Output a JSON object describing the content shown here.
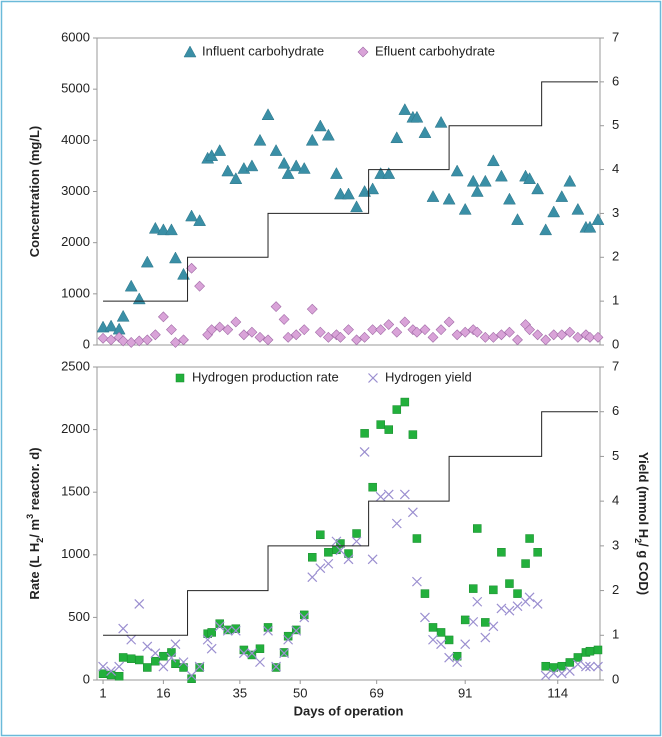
{
  "chart_data": [
    {
      "type": "scatter",
      "ylabel": [
        {
          "text": "Concentration  (mg/L)"
        }
      ],
      "xlim": [
        -0.5,
        124.5
      ],
      "ylim": [
        0,
        6000
      ],
      "yticks": [
        0,
        1000,
        2000,
        3000,
        4000,
        5000,
        6000
      ],
      "y2lim": [
        0,
        7
      ],
      "y2ticks": [
        0,
        1,
        2,
        3,
        4,
        5,
        6,
        7
      ],
      "legend": "top",
      "x": [
        1,
        3,
        5,
        6,
        8,
        10,
        12,
        14,
        16,
        18,
        19,
        21,
        23,
        25,
        27,
        28,
        30,
        32,
        34,
        36,
        38,
        40,
        42,
        44,
        46,
        47,
        49,
        51,
        53,
        55,
        57,
        59,
        60,
        62,
        64,
        66,
        68,
        70,
        72,
        74,
        76,
        78,
        79,
        81,
        83,
        85,
        87,
        89,
        91,
        93,
        94,
        96,
        98,
        100,
        102,
        104,
        106,
        107,
        109,
        111,
        113,
        115,
        117,
        119,
        121,
        122,
        124
      ],
      "series": [
        {
          "name": "Influent carbohydrate",
          "marker": "triangle",
          "color": "#3a8fa6",
          "values": [
            350,
            370,
            310,
            560,
            1150,
            900,
            1620,
            2280,
            2250,
            2250,
            1700,
            1380,
            2520,
            2430,
            3650,
            3700,
            3800,
            3400,
            3250,
            3450,
            3500,
            4000,
            4500,
            3800,
            3550,
            3350,
            3500,
            3450,
            4000,
            4280,
            4100,
            3350,
            2950,
            2950,
            2700,
            3000,
            3050,
            3350,
            3350,
            4050,
            4600,
            4450,
            4450,
            4150,
            2900,
            4350,
            2850,
            3400,
            2650,
            3200,
            3000,
            3200,
            3600,
            3300,
            2850,
            2450,
            3300,
            3250,
            3050,
            2250,
            2600,
            2900,
            3200,
            2650,
            2300,
            2300,
            2450
          ]
        },
        {
          "name": "Efluent carbohydrate",
          "marker": "diamond",
          "color": "#d9a3d8",
          "values": [
            130,
            100,
            150,
            80,
            50,
            80,
            100,
            200,
            550,
            300,
            50,
            100,
            1500,
            1150,
            200,
            300,
            350,
            300,
            450,
            200,
            250,
            150,
            100,
            750,
            500,
            150,
            200,
            300,
            700,
            250,
            150,
            200,
            150,
            300,
            100,
            150,
            300,
            300,
            400,
            250,
            450,
            300,
            250,
            300,
            150,
            300,
            450,
            200,
            250,
            300,
            250,
            150,
            150,
            200,
            250,
            100,
            400,
            300,
            200,
            100,
            200,
            200,
            250,
            150,
            200,
            150,
            150
          ]
        },
        {
          "marker": "none",
          "color": "#222222",
          "axis": "y2",
          "x": [
            1,
            22,
            22,
            42,
            42,
            67,
            67,
            87,
            87,
            110,
            110,
            124
          ],
          "values": [
            1,
            1,
            2,
            2,
            3,
            3,
            4,
            4,
            5,
            5,
            6,
            6
          ]
        }
      ]
    },
    {
      "type": "scatter",
      "ylabel": [
        {
          "text": "Rate (L H"
        },
        {
          "text": "2",
          "script": "sub"
        },
        {
          "text": "/ m"
        },
        {
          "text": "3",
          "script": "super"
        },
        {
          "text": " reactor. d)"
        }
      ],
      "y2label": [
        {
          "text": "Yield (mmol H"
        },
        {
          "text": "2",
          "script": "sub"
        },
        {
          "text": "/ g COD)"
        }
      ],
      "xlabel": "Days  of operation",
      "xlim": [
        -0.5,
        124.5
      ],
      "xticks": [
        1,
        16,
        35,
        50,
        69,
        91,
        114
      ],
      "ylim": [
        0,
        2500
      ],
      "yticks": [
        0,
        500,
        1000,
        1500,
        2000,
        2500
      ],
      "y2lim": [
        0,
        7
      ],
      "y2ticks": [
        0,
        1,
        2,
        3,
        4,
        5,
        6,
        7
      ],
      "legend": "top",
      "x": [
        1,
        3,
        5,
        6,
        8,
        10,
        12,
        14,
        16,
        18,
        19,
        21,
        23,
        25,
        27,
        28,
        30,
        32,
        34,
        36,
        38,
        40,
        42,
        44,
        46,
        47,
        49,
        51,
        53,
        55,
        57,
        59,
        60,
        62,
        64,
        66,
        68,
        70,
        72,
        74,
        76,
        78,
        79,
        81,
        83,
        85,
        87,
        89,
        91,
        93,
        94,
        96,
        98,
        100,
        102,
        104,
        106,
        107,
        109,
        111,
        113,
        115,
        117,
        119,
        121,
        122,
        124
      ],
      "series": [
        {
          "name": "Hydrogen production rate",
          "marker": "square",
          "color": "#22b03c",
          "values": [
            50,
            40,
            30,
            180,
            170,
            160,
            100,
            150,
            190,
            220,
            130,
            100,
            10,
            100,
            370,
            380,
            450,
            400,
            410,
            240,
            200,
            250,
            420,
            100,
            220,
            350,
            400,
            520,
            980,
            1160,
            1020,
            1040,
            1090,
            1010,
            1170,
            1970,
            1540,
            2040,
            2000,
            2160,
            2220,
            1960,
            1130,
            690,
            420,
            380,
            320,
            190,
            480,
            730,
            1210,
            460,
            720,
            1020,
            770,
            690,
            930,
            1130,
            1020,
            110,
            100,
            110,
            140,
            180,
            220,
            230,
            240
          ]
        },
        {
          "name": "Hydrogen yield",
          "marker": "cross",
          "color": "#9b8fd0",
          "axis": "y2",
          "values": [
            0.3,
            0.2,
            0.3,
            1.15,
            0.9,
            1.7,
            0.75,
            0.6,
            0.3,
            0.5,
            0.8,
            0.4,
            0.1,
            0.3,
            0.9,
            0.7,
            1.2,
            1.1,
            1.1,
            0.6,
            0.6,
            0.4,
            1.1,
            0.3,
            0.6,
            0.9,
            1.1,
            1.4,
            2.3,
            2.5,
            2.6,
            3.1,
            2.9,
            2.7,
            3.1,
            5.1,
            2.7,
            4.1,
            4.15,
            3.5,
            4.15,
            3.75,
            2.2,
            1.4,
            0.9,
            0.8,
            0.5,
            0.4,
            0.8,
            1.3,
            1.75,
            0.95,
            1.2,
            1.6,
            1.55,
            1.65,
            1.75,
            1.85,
            1.7,
            0.1,
            0.15,
            0.15,
            0.2,
            0.35,
            0.3,
            0.3,
            0.3
          ]
        },
        {
          "marker": "none",
          "color": "#222222",
          "axis": "y2",
          "x": [
            1,
            22,
            22,
            42,
            42,
            67,
            67,
            87,
            87,
            110,
            110,
            124
          ],
          "values": [
            1,
            1,
            2,
            2,
            3,
            3,
            4,
            4,
            5,
            5,
            6,
            6
          ]
        }
      ]
    }
  ]
}
